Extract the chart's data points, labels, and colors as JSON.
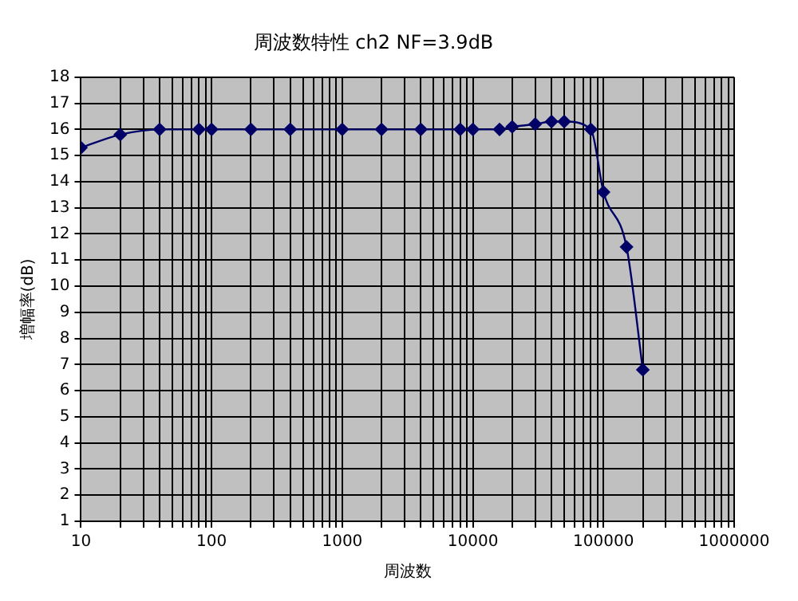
{
  "chart_data": {
    "type": "line",
    "title": "周波数特性 ch2 NF=3.9dB",
    "xlabel": "周波数",
    "ylabel": "増幅率(dB)",
    "x": [
      10,
      20,
      40,
      80,
      100,
      200,
      400,
      1000,
      2000,
      4000,
      8000,
      10000,
      16000,
      20000,
      30000,
      40000,
      50000,
      80000,
      100000,
      150000,
      200000
    ],
    "series": [
      {
        "color": "#000066",
        "values": [
          15.3,
          15.8,
          16.0,
          16.0,
          16.0,
          16.0,
          16.0,
          16.0,
          16.0,
          16.0,
          16.0,
          16.0,
          16.0,
          16.1,
          16.2,
          16.3,
          16.3,
          16.0,
          13.6,
          11.5,
          6.8
        ]
      }
    ],
    "log": "x",
    "xlim": [
      10,
      1000000
    ],
    "xticks": [
      10,
      {
        "value": 20,
        "label": null
      },
      {
        "value": 30,
        "label": null
      },
      {
        "value": 40,
        "label": null
      },
      {
        "value": 50,
        "label": null
      },
      {
        "value": 60,
        "label": null
      },
      {
        "value": 70,
        "label": null
      },
      {
        "value": 80,
        "label": null
      },
      {
        "value": 90,
        "label": null
      },
      100,
      {
        "value": 200,
        "label": null
      },
      {
        "value": 300,
        "label": null
      },
      {
        "value": 400,
        "label": null
      },
      {
        "value": 500,
        "label": null
      },
      {
        "value": 600,
        "label": null
      },
      {
        "value": 700,
        "label": null
      },
      {
        "value": 800,
        "label": null
      },
      {
        "value": 900,
        "label": null
      },
      1000,
      {
        "value": 2000,
        "label": null
      },
      {
        "value": 3000,
        "label": null
      },
      {
        "value": 4000,
        "label": null
      },
      {
        "value": 5000,
        "label": null
      },
      {
        "value": 6000,
        "label": null
      },
      {
        "value": 7000,
        "label": null
      },
      {
        "value": 8000,
        "label": null
      },
      {
        "value": 9000,
        "label": null
      },
      10000,
      {
        "value": 20000,
        "label": null
      },
      {
        "value": 30000,
        "label": null
      },
      {
        "value": 40000,
        "label": null
      },
      {
        "value": 50000,
        "label": null
      },
      {
        "value": 60000,
        "label": null
      },
      {
        "value": 70000,
        "label": null
      },
      {
        "value": 80000,
        "label": null
      },
      {
        "value": 90000,
        "label": null
      },
      100000,
      {
        "value": 200000,
        "label": null
      },
      {
        "value": 300000,
        "label": null
      },
      {
        "value": 400000,
        "label": null
      },
      {
        "value": 500000,
        "label": null
      },
      {
        "value": 600000,
        "label": null
      },
      {
        "value": 700000,
        "label": null
      },
      {
        "value": 800000,
        "label": null
      },
      {
        "value": 900000,
        "label": null
      },
      1000000
    ],
    "ylim": [
      1,
      18
    ],
    "yticks": [
      1,
      2,
      3,
      4,
      5,
      6,
      7,
      8,
      9,
      10,
      11,
      12,
      13,
      14,
      15,
      16,
      17,
      18
    ],
    "grid": true,
    "legend": false,
    "marker": "diamond",
    "line_style": "solid"
  }
}
